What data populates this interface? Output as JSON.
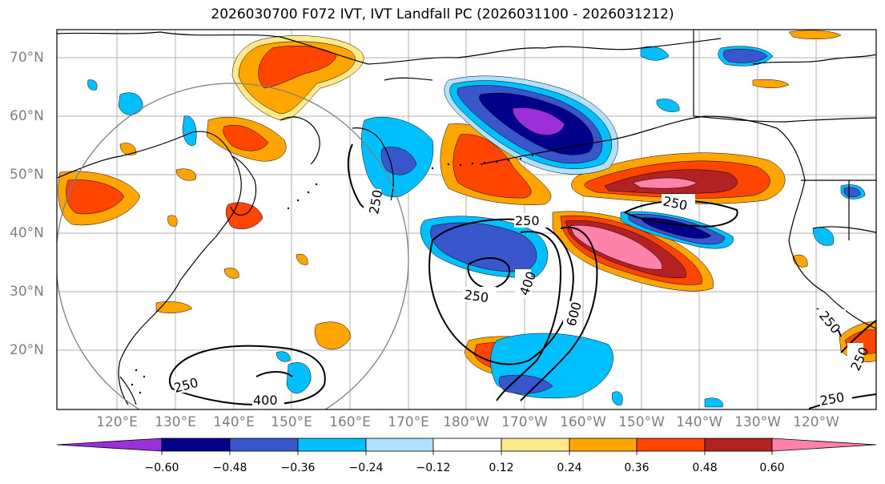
{
  "title": "2026030700 F072 IVT, IVT Landfall PC (2026031100 - 2026031212)",
  "lat_labels": [
    "70°N",
    "60°N",
    "50°N",
    "40°N",
    "30°N",
    "20°N"
  ],
  "lon_labels": [
    "120°E",
    "130°E",
    "140°E",
    "150°E",
    "160°E",
    "170°E",
    "180°W",
    "170°W",
    "160°W",
    "150°W",
    "140°W",
    "130°W",
    "120°W"
  ],
  "contour_labels": [
    "250",
    "250",
    "250",
    "250",
    "400",
    "600",
    "250",
    "400",
    "250",
    "250",
    "250"
  ],
  "colorbar": {
    "ticks": [
      "−0.60",
      "−0.48",
      "−0.36",
      "−0.24",
      "−0.12",
      "0.12",
      "0.24",
      "0.36",
      "0.48",
      "0.60"
    ],
    "colors": [
      "#9b30d9",
      "#00008b",
      "#3a56cc",
      "#00bfff",
      "#b0e2ff",
      "#ffffff",
      "#ffe98a",
      "#ffa500",
      "#ff4500",
      "#b22222",
      "#ff82ab"
    ]
  },
  "colors": {
    "grid": "#b0b0b0",
    "coast": "#000000",
    "axis_label": "#7f7f7f"
  }
}
